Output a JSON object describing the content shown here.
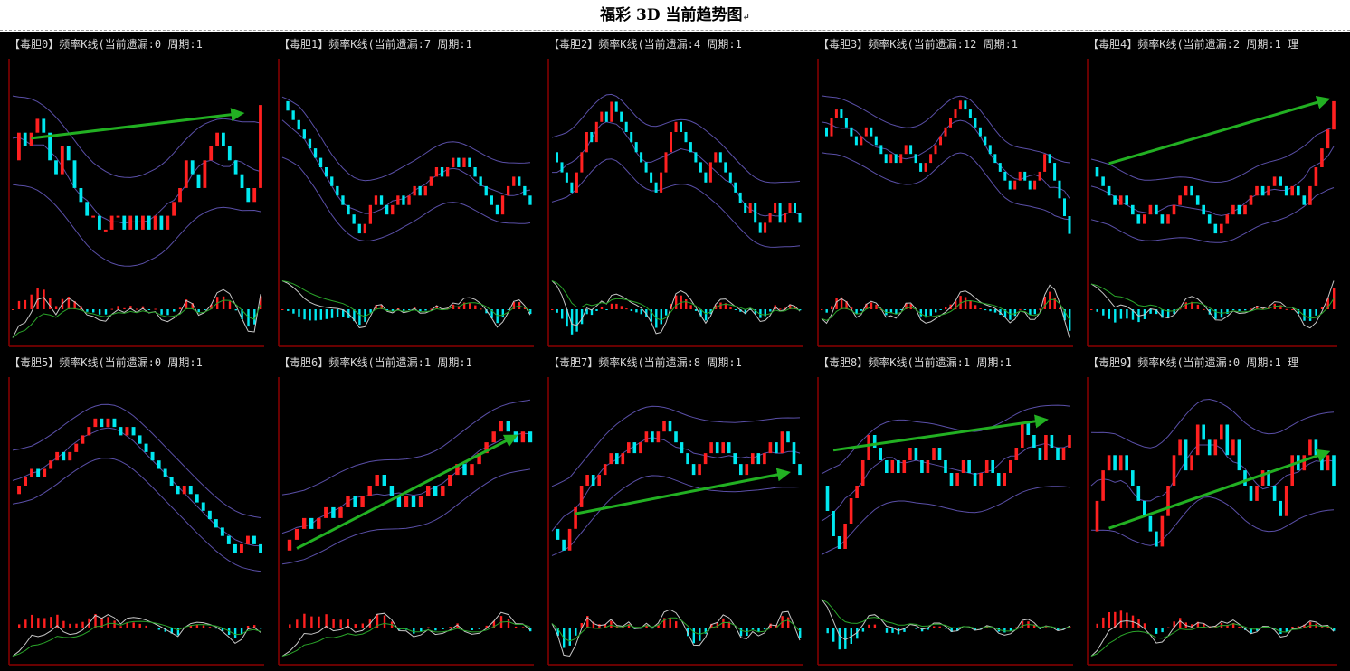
{
  "page": {
    "title": "福彩 3D 当前趋势图",
    "return_mark": "↵"
  },
  "colors": {
    "background": "#000000",
    "frame": "#8b0000",
    "candle_up": "#ff2020",
    "candle_down": "#00e8f0",
    "band": "#5a4fa8",
    "trend_arrow": "#22b022",
    "osc_white": "#c8c8c8",
    "osc_green": "#2aa52a",
    "hist_pos": "#ff2020",
    "hist_neg": "#00e8f0"
  },
  "icons": [
    "trend-arrow-icon"
  ],
  "chart_data": [
    {
      "type": "candlestick",
      "title": "【毒胆0】频率K线(当前遗漏:0 周期:1",
      "close": [
        3,
        5,
        4,
        5,
        6,
        5,
        3,
        2,
        4,
        3,
        1,
        0,
        -1,
        -1,
        -2,
        -2,
        -1,
        -1,
        -2,
        -1,
        -2,
        -1,
        -2,
        -1,
        -2,
        -1,
        0,
        1,
        3,
        2,
        1,
        3,
        4,
        5,
        4,
        3,
        2,
        1,
        0,
        1,
        7
      ],
      "arrow": {
        "from": [
          3,
          4.6
        ],
        "to": [
          37,
          6.4
        ]
      }
    },
    {
      "type": "candlestick",
      "title": "【毒胆1】频率K线(当前遗漏:7 周期:1",
      "close": [
        12,
        11,
        10,
        9,
        8,
        7,
        6,
        5,
        4,
        3,
        2,
        1,
        0,
        -1,
        -2,
        -1,
        1,
        2,
        1,
        0,
        1,
        2,
        1,
        2,
        3,
        2,
        3,
        4,
        5,
        4,
        5,
        6,
        5,
        6,
        5,
        4,
        3,
        2,
        1,
        0,
        2,
        3,
        4,
        3,
        2,
        1
      ],
      "arrow": null
    },
    {
      "type": "candlestick",
      "title": "【毒胆2】频率K线(当前遗漏:4 周期:1",
      "close": [
        4,
        3,
        2,
        1,
        0,
        2,
        4,
        6,
        5,
        7,
        8,
        7,
        9,
        8,
        7,
        6,
        5,
        4,
        3,
        2,
        1,
        0,
        2,
        4,
        6,
        7,
        6,
        5,
        4,
        3,
        2,
        1,
        3,
        4,
        3,
        2,
        1,
        0,
        -1,
        -2,
        -1,
        -3,
        -4,
        -3,
        -2,
        -1,
        -3,
        -2,
        -1,
        -2,
        -3
      ],
      "arrow": null
    },
    {
      "type": "candlestick",
      "title": "【毒胆3】频率K线(当前遗漏:12 周期:1",
      "close": [
        5,
        4,
        6,
        7,
        6,
        5,
        4,
        3,
        4,
        5,
        4,
        3,
        2,
        1,
        2,
        1,
        2,
        3,
        2,
        1,
        0,
        1,
        2,
        3,
        4,
        5,
        6,
        7,
        8,
        7,
        6,
        5,
        4,
        3,
        2,
        1,
        0,
        -1,
        -2,
        -1,
        0,
        -1,
        -2,
        -1,
        0,
        2,
        1,
        -1,
        -3,
        -5,
        -7
      ],
      "arrow": null
    },
    {
      "type": "candlestick",
      "title": "【毒胆4】频率K线(当前遗漏:2 周期:1 理",
      "close": [
        2,
        1,
        0,
        -1,
        -2,
        -1,
        -2,
        -3,
        -4,
        -3,
        -2,
        -3,
        -4,
        -3,
        -2,
        -1,
        0,
        -1,
        -2,
        -3,
        -4,
        -5,
        -4,
        -3,
        -2,
        -3,
        -2,
        -1,
        0,
        -1,
        0,
        1,
        0,
        -1,
        0,
        -1,
        -2,
        0,
        2,
        4,
        6,
        9
      ],
      "arrow": {
        "from": [
          3,
          2.4
        ],
        "to": [
          40,
          9.2
        ]
      }
    },
    {
      "type": "candlestick",
      "title": "【毒胆5】频率K线(当前遗漏:0 周期:1",
      "close": [
        0,
        1,
        2,
        3,
        2,
        3,
        4,
        5,
        4,
        5,
        6,
        7,
        8,
        9,
        8,
        9,
        8,
        7,
        8,
        7,
        6,
        5,
        4,
        3,
        2,
        1,
        0,
        1,
        0,
        -1,
        -2,
        -3,
        -4,
        -5,
        -6,
        -7,
        -6,
        -5,
        -6,
        -7
      ],
      "arrow": null
    },
    {
      "type": "candlestick",
      "title": "【毒胆6】频率K线(当前遗漏:1 周期:1",
      "close": [
        -2,
        -1,
        0,
        1,
        0,
        1,
        2,
        1,
        2,
        3,
        2,
        3,
        4,
        5,
        4,
        3,
        2,
        3,
        2,
        3,
        4,
        3,
        4,
        5,
        6,
        5,
        6,
        7,
        8,
        9,
        10,
        9,
        8,
        9,
        8
      ],
      "arrow": {
        "from": [
          2,
          -1.8
        ],
        "to": [
          32,
          8.6
        ]
      }
    },
    {
      "type": "candlestick",
      "title": "【毒胆7】频率K线(当前遗漏:8 周期:1",
      "close": [
        -3,
        -4,
        -5,
        -3,
        -1,
        1,
        2,
        1,
        2,
        3,
        4,
        3,
        4,
        5,
        4,
        5,
        6,
        5,
        6,
        7,
        6,
        5,
        4,
        3,
        2,
        3,
        4,
        5,
        4,
        5,
        4,
        3,
        2,
        3,
        4,
        3,
        4,
        5,
        4,
        6,
        5,
        3,
        2
      ],
      "arrow": {
        "from": [
          4,
          -1.6
        ],
        "to": [
          40,
          2.2
        ]
      }
    },
    {
      "type": "candlestick",
      "title": "【毒胆8】频率K线(当前遗漏:1 周期:1",
      "close": [
        -2,
        -4,
        -6,
        -7,
        -5,
        -3,
        -2,
        0,
        2,
        1,
        0,
        -1,
        0,
        -1,
        0,
        1,
        0,
        -1,
        0,
        1,
        0,
        -1,
        -2,
        -1,
        0,
        -1,
        -2,
        -1,
        0,
        -1,
        -2,
        -1,
        0,
        1,
        3,
        2,
        1,
        0,
        2,
        1,
        0,
        1,
        2
      ],
      "arrow": {
        "from": [
          2,
          0.8
        ],
        "to": [
          38,
          3.2
        ]
      }
    },
    {
      "type": "candlestick",
      "title": "【毒胆9】频率K线(当前遗漏:0 周期:1 理",
      "close": [
        -3,
        -1,
        1,
        2,
        1,
        2,
        1,
        0,
        -1,
        -2,
        -3,
        -4,
        -2,
        0,
        2,
        3,
        1,
        2,
        4,
        3,
        2,
        3,
        4,
        2,
        3,
        1,
        0,
        -1,
        0,
        1,
        0,
        -1,
        -2,
        0,
        2,
        1,
        2,
        3,
        2,
        1,
        2,
        0
      ],
      "arrow": {
        "from": [
          3,
          -2.8
        ],
        "to": [
          40,
          2.2
        ]
      }
    }
  ]
}
